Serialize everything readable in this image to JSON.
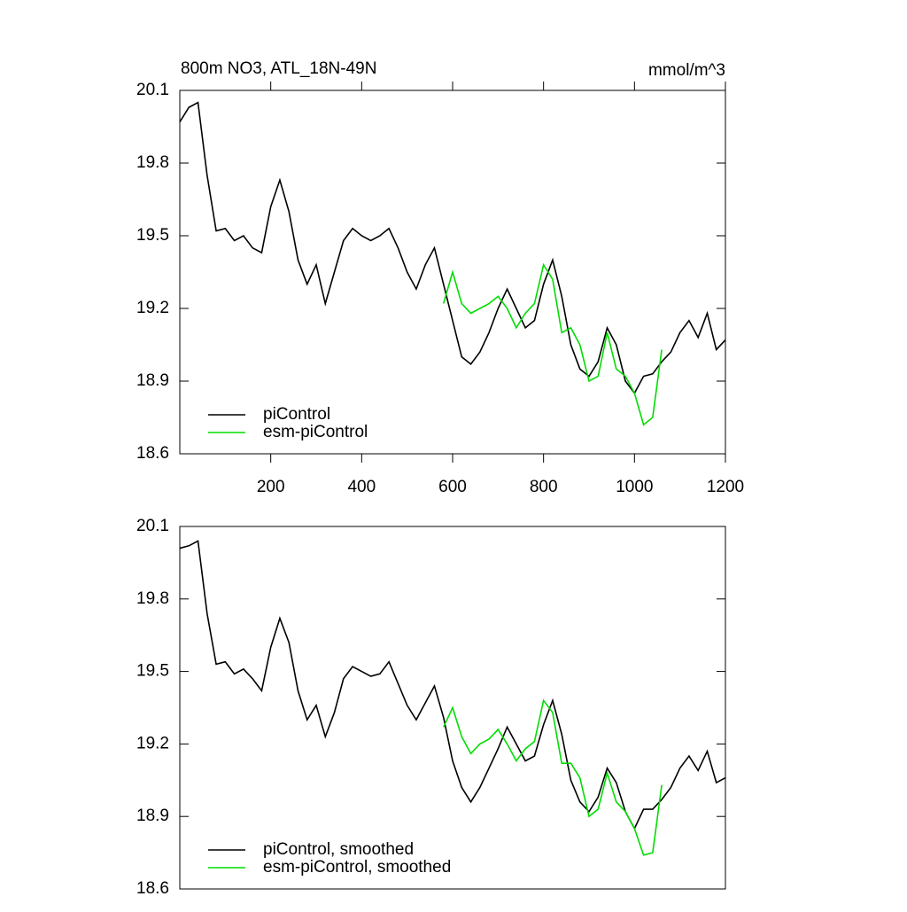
{
  "chart_data": [
    {
      "type": "line",
      "title": "800m NO3, ATL_18N-49N",
      "units": "mmol/m^3",
      "x": [
        0,
        20,
        40,
        60,
        80,
        100,
        120,
        140,
        160,
        180,
        200,
        220,
        240,
        260,
        280,
        300,
        320,
        340,
        360,
        380,
        400,
        420,
        440,
        460,
        480,
        500,
        520,
        540,
        560,
        580,
        600,
        620,
        640,
        660,
        680,
        700,
        720,
        740,
        760,
        780,
        800,
        820,
        840,
        860,
        880,
        900,
        920,
        940,
        960,
        980,
        1000,
        1020,
        1040,
        1060,
        1080,
        1100,
        1120,
        1140,
        1160,
        1180,
        1200
      ],
      "series": [
        {
          "name": "piControl",
          "color": "#000000",
          "values": [
            19.97,
            20.03,
            20.05,
            19.75,
            19.52,
            19.53,
            19.48,
            19.5,
            19.45,
            19.43,
            19.62,
            19.73,
            19.6,
            19.4,
            19.3,
            19.38,
            19.22,
            19.35,
            19.48,
            19.53,
            19.5,
            19.48,
            19.5,
            19.53,
            19.45,
            19.35,
            19.28,
            19.38,
            19.45,
            19.3,
            19.15,
            19.0,
            18.97,
            19.02,
            19.1,
            19.2,
            19.28,
            19.2,
            19.12,
            19.15,
            19.3,
            19.4,
            19.25,
            19.05,
            18.95,
            18.92,
            18.98,
            19.12,
            19.05,
            18.9,
            18.85,
            18.92,
            18.93,
            18.98,
            19.02,
            19.1,
            19.15,
            19.08,
            19.18,
            19.03,
            19.07
          ]
        },
        {
          "name": "esm-piControl",
          "color": "#00dd00",
          "values": [
            null,
            null,
            null,
            null,
            null,
            null,
            null,
            null,
            null,
            null,
            null,
            null,
            null,
            null,
            null,
            null,
            null,
            null,
            null,
            null,
            null,
            null,
            null,
            null,
            null,
            null,
            null,
            null,
            null,
            19.22,
            19.35,
            19.22,
            19.18,
            19.2,
            19.22,
            19.25,
            19.2,
            19.12,
            19.18,
            19.22,
            19.38,
            19.32,
            19.1,
            19.12,
            19.05,
            18.9,
            18.92,
            19.1,
            18.95,
            18.92,
            18.85,
            18.72,
            18.75,
            19.03,
            null,
            null,
            null,
            null,
            null,
            null,
            null
          ]
        }
      ],
      "xlim": [
        0,
        1200
      ],
      "xticks": [
        200,
        400,
        600,
        800,
        1000,
        1200
      ],
      "ylim": [
        18.6,
        20.1
      ],
      "yticks": [
        18.6,
        18.9,
        19.2,
        19.5,
        19.8,
        20.1
      ],
      "legend": "lower left"
    },
    {
      "type": "line",
      "x": [
        0,
        20,
        40,
        60,
        80,
        100,
        120,
        140,
        160,
        180,
        200,
        220,
        240,
        260,
        280,
        300,
        320,
        340,
        360,
        380,
        400,
        420,
        440,
        460,
        480,
        500,
        520,
        540,
        560,
        580,
        600,
        620,
        640,
        660,
        680,
        700,
        720,
        740,
        760,
        780,
        800,
        820,
        840,
        860,
        880,
        900,
        920,
        940,
        960,
        980,
        1000,
        1020,
        1040,
        1060,
        1080,
        1100,
        1120,
        1140,
        1160,
        1180,
        1200
      ],
      "series": [
        {
          "name": "piControl, smoothed",
          "color": "#000000",
          "values": [
            20.01,
            20.02,
            20.04,
            19.74,
            19.53,
            19.54,
            19.49,
            19.51,
            19.47,
            19.42,
            19.6,
            19.72,
            19.62,
            19.42,
            19.3,
            19.36,
            19.23,
            19.33,
            19.47,
            19.52,
            19.5,
            19.48,
            19.49,
            19.54,
            19.45,
            19.36,
            19.3,
            19.37,
            19.44,
            19.31,
            19.13,
            19.02,
            18.96,
            19.02,
            19.1,
            19.18,
            19.27,
            19.2,
            19.13,
            19.15,
            19.28,
            19.38,
            19.24,
            19.05,
            18.96,
            18.92,
            18.98,
            19.1,
            19.04,
            18.92,
            18.85,
            18.93,
            18.93,
            18.97,
            19.02,
            19.1,
            19.15,
            19.09,
            19.17,
            19.04,
            19.06
          ]
        },
        {
          "name": "esm-piControl, smoothed",
          "color": "#00dd00",
          "values": [
            null,
            null,
            null,
            null,
            null,
            null,
            null,
            null,
            null,
            null,
            null,
            null,
            null,
            null,
            null,
            null,
            null,
            null,
            null,
            null,
            null,
            null,
            null,
            null,
            null,
            null,
            null,
            null,
            null,
            19.27,
            19.35,
            19.23,
            19.16,
            19.2,
            19.22,
            19.26,
            19.2,
            19.13,
            19.18,
            19.21,
            19.38,
            19.33,
            19.12,
            19.12,
            19.06,
            18.9,
            18.93,
            19.08,
            18.96,
            18.92,
            18.85,
            18.74,
            18.75,
            19.03,
            null,
            null,
            null,
            null,
            null,
            null,
            null
          ]
        }
      ],
      "xlim": [
        0,
        1200
      ],
      "ylim": [
        18.6,
        20.1
      ],
      "yticks": [
        18.6,
        18.9,
        19.2,
        19.5,
        19.8,
        20.1
      ],
      "legend": "lower left"
    }
  ]
}
